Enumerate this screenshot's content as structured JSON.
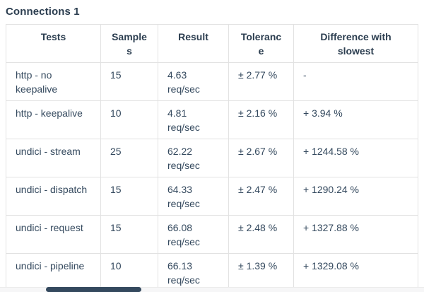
{
  "page": {
    "title": "Connections 1"
  },
  "table": {
    "columns": [
      "Tests",
      "Samples",
      "Result",
      "Tolerance",
      "Difference with slowest"
    ],
    "rows": [
      {
        "test": "http - no keepalive",
        "samples": "15",
        "result": "4.63 req/sec",
        "tolerance": "± 2.77 %",
        "difference": "-"
      },
      {
        "test": "http - keepalive",
        "samples": "10",
        "result": "4.81 req/sec",
        "tolerance": "± 2.16 %",
        "difference": "+ 3.94 %"
      },
      {
        "test": "undici - stream",
        "samples": "25",
        "result": "62.22 req/sec",
        "tolerance": "± 2.67 %",
        "difference": "+ 1244.58 %"
      },
      {
        "test": "undici - dispatch",
        "samples": "15",
        "result": "64.33 req/sec",
        "tolerance": "± 2.47 %",
        "difference": "+ 1290.24 %"
      },
      {
        "test": "undici - request",
        "samples": "15",
        "result": "66.08 req/sec",
        "tolerance": "± 2.48 %",
        "difference": "+ 1327.88 %"
      },
      {
        "test": "undici - pipeline",
        "samples": "10",
        "result": "66.13 req/sec",
        "tolerance": "± 1.39 %",
        "difference": "+ 1329.08 %"
      }
    ]
  },
  "colors": {
    "heading_text": "#2c3e50",
    "body_text": "#34495e",
    "table_border": "#e2e2e2",
    "scrollbar_track": "#f6f6f7",
    "scrollbar_thumb": "#34495e"
  }
}
